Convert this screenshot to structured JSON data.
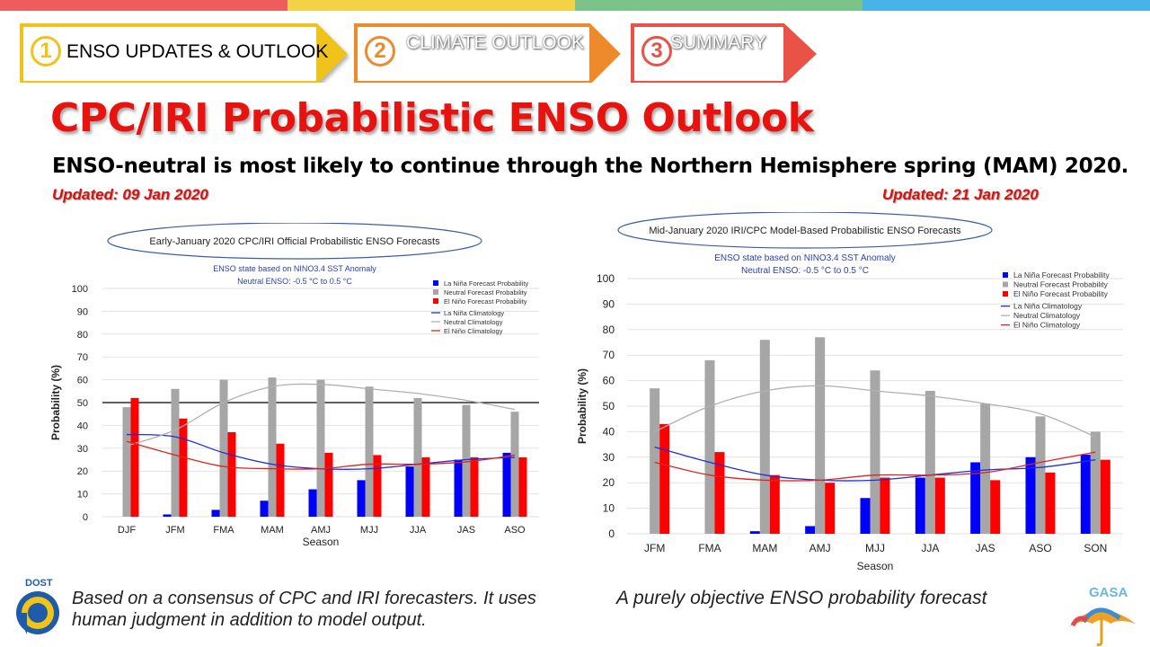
{
  "top_colors": [
    "#ee5d5d",
    "#f2d347",
    "#7cc38a",
    "#47b3e6"
  ],
  "steps": [
    {
      "num": "1",
      "label": "ENSO UPDATES & OUTLOOK",
      "active": true,
      "color": "#f0c31b"
    },
    {
      "num": "2",
      "label": "CLIMATE OUTLOOK",
      "active": false,
      "color": "#ee8a2a"
    },
    {
      "num": "3",
      "label": "SUMMARY",
      "active": false,
      "color": "#e85247"
    }
  ],
  "title": "CPC/IRI Probabilistic ENSO Outlook",
  "subtitle": "ENSO-neutral is most likely to continue through the Northern Hemisphere spring (MAM) 2020.",
  "updated_left": "Updated: 09 Jan 2020",
  "updated_right": "Updated: 21 Jan 2020",
  "caption_left": "Based on a consensus of CPC and IRI forecasters. It uses human judgment in addition to model output.",
  "caption_right": "A purely objective ENSO probability forecast",
  "logos": {
    "left_text": "DOST",
    "right_text": "GASA"
  },
  "colors": {
    "la_nina": "#0000ff",
    "neutral": "#a6a6a6",
    "el_nino": "#ff0000",
    "title_red": "#e8120e"
  },
  "chart_data": [
    {
      "type": "bar",
      "title": "Early-January 2020 CPC/IRI Official Probabilistic ENSO Forecasts",
      "subtitle1": "ENSO state based on NINO3.4 SST Anomaly",
      "subtitle2": "Neutral ENSO: -0.5 °C to 0.5 °C",
      "xlabel": "Season",
      "ylabel": "Probability (%)",
      "ylim": [
        0,
        100
      ],
      "yticks": [
        0,
        10,
        20,
        30,
        40,
        50,
        60,
        70,
        80,
        90,
        100
      ],
      "reference_line": 50,
      "categories": [
        "DJF",
        "JFM",
        "FMA",
        "MAM",
        "AMJ",
        "MJJ",
        "JJA",
        "JAS",
        "ASO"
      ],
      "series": [
        {
          "name": "La Niña Forecast Probability",
          "values": [
            0,
            1,
            3,
            7,
            12,
            16,
            22,
            25,
            28
          ]
        },
        {
          "name": "Neutral Forecast Probability",
          "values": [
            48,
            56,
            60,
            61,
            60,
            57,
            52,
            49,
            46
          ]
        },
        {
          "name": "El Niño Forecast Probability",
          "values": [
            52,
            43,
            37,
            32,
            28,
            27,
            26,
            26,
            26
          ]
        }
      ],
      "lines": [
        {
          "name": "La Niña Climatology",
          "values": [
            36,
            35,
            28,
            23,
            21,
            21,
            23,
            25,
            26
          ]
        },
        {
          "name": "Neutral Climatology",
          "values": [
            31,
            38,
            50,
            57,
            58,
            56,
            54,
            51,
            47
          ]
        },
        {
          "name": "El Niño Climatology",
          "values": [
            33,
            27,
            22,
            21,
            21,
            23,
            23,
            24,
            27
          ]
        }
      ],
      "legend": "top-right"
    },
    {
      "type": "bar",
      "title": "Mid-January 2020 IRI/CPC Model-Based Probabilistic ENSO Forecasts",
      "subtitle1": "ENSO state based on NINO3.4 SST Anomaly",
      "subtitle2": "Neutral ENSO: -0.5 °C to 0.5 °C",
      "xlabel": "Season",
      "ylabel": "Probability (%)",
      "ylim": [
        0,
        100
      ],
      "yticks": [
        0,
        10,
        20,
        30,
        40,
        50,
        60,
        70,
        80,
        90,
        100
      ],
      "reference_line": null,
      "categories": [
        "JFM",
        "FMA",
        "MAM",
        "AMJ",
        "MJJ",
        "JJA",
        "JAS",
        "ASO",
        "SON"
      ],
      "series": [
        {
          "name": "La Niña Forecast Probability",
          "values": [
            0,
            0,
            1,
            3,
            14,
            22,
            28,
            30,
            31
          ]
        },
        {
          "name": "Neutral Forecast Probability",
          "values": [
            57,
            68,
            76,
            77,
            64,
            56,
            51,
            46,
            40
          ]
        },
        {
          "name": "El Niño Forecast Probability",
          "values": [
            43,
            32,
            23,
            20,
            22,
            22,
            21,
            24,
            29
          ]
        }
      ],
      "lines": [
        {
          "name": "La Niña Climatology",
          "values": [
            34,
            28,
            23,
            21,
            21,
            23,
            25,
            26,
            29
          ]
        },
        {
          "name": "Neutral Climatology",
          "values": [
            40,
            50,
            56,
            58,
            56,
            54,
            51,
            47,
            38
          ]
        },
        {
          "name": "El Niño Climatology",
          "values": [
            28,
            23,
            21,
            21,
            23,
            23,
            24,
            28,
            32
          ]
        }
      ],
      "legend": "top-right"
    }
  ]
}
